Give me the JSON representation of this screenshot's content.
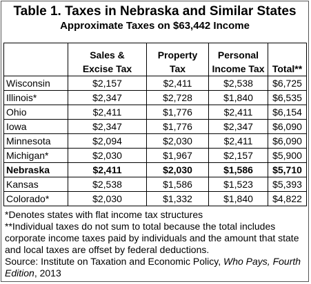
{
  "title": "Table 1. Taxes in Nebraska and Similar States",
  "subtitle": "Approximate Taxes on $63,442 Income",
  "table": {
    "headers": [
      [
        "Sales &",
        "Excise Tax"
      ],
      [
        "Property",
        "Tax"
      ],
      [
        "Personal",
        "Income Tax"
      ],
      [
        "Total**"
      ]
    ],
    "rows": [
      {
        "cells": [
          "Wisconsin",
          "$2,157",
          "$2,411",
          "$2,538",
          "$6,725"
        ]
      },
      {
        "cells": [
          "Illinois*",
          "$2,347",
          "$2,728",
          "$1,840",
          "$6,535"
        ]
      },
      {
        "cells": [
          "Ohio",
          "$2,411",
          "$1,776",
          "$2,411",
          "$6,154"
        ]
      },
      {
        "cells": [
          "Iowa",
          "$2,347",
          "$1,776",
          "$2,347",
          "$6,090"
        ]
      },
      {
        "cells": [
          "Minnesota",
          "$2,094",
          "$2,030",
          "$2,411",
          "$6,090"
        ]
      },
      {
        "cells": [
          "Michigan*",
          "$2,030",
          "$1,967",
          "$2,157",
          "$5,900"
        ]
      },
      {
        "cells": [
          "Nebraska",
          "$2,411",
          "$2,030",
          "$1,586",
          "$5,710"
        ],
        "bold": true
      },
      {
        "cells": [
          "Kansas",
          "$2,538",
          "$1,586",
          "$1,523",
          "$5,393"
        ]
      },
      {
        "cells": [
          "Colorado*",
          "$2,030",
          "$1,332",
          "$1,840",
          "$4,822"
        ]
      }
    ]
  },
  "notes": [
    "*Denotes states with flat income tax structures",
    "**Individual taxes do not sum to total because the total includes corporate income taxes paid by individuals and the amount that state and local taxes are offset by federal deductions."
  ],
  "source": {
    "text": "Source: Institute on Taxation and Economic Policy, ",
    "italic": "Who Pays, Fourth Edition",
    "end": ", 2013"
  }
}
